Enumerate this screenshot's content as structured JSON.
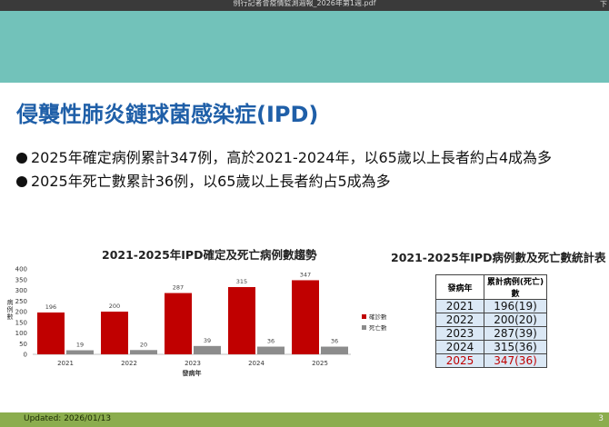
{
  "window": {
    "pdf_title": "例行記者會疫情監測週報_2026年第1週.pdf",
    "corner_text": "下"
  },
  "slide": {
    "heading": "侵襲性肺炎鏈球菌感染症(IPD)",
    "bullets": [
      "2025年確定病例累計347例，高於2021-2024年，以65歲以上長者約占4成為多",
      "2025年死亡數累計36例，以65歲以上長者約占5成為多"
    ],
    "footer": {
      "updated": "Updated: 2026/01/13",
      "page": "3"
    }
  },
  "colors": {
    "confirmed": "#c00000",
    "deaths": "#8c8c8c",
    "highlight": "#c00000"
  },
  "chart_data": {
    "type": "bar",
    "title": "2021-2025年IPD確定及死亡病例數趨勢",
    "xlabel": "發病年",
    "ylabel": "病例數",
    "categories": [
      "2021",
      "2022",
      "2023",
      "2024",
      "2025"
    ],
    "series": [
      {
        "name": "確診數",
        "values": [
          196,
          200,
          287,
          315,
          347
        ]
      },
      {
        "name": "死亡數",
        "values": [
          19,
          20,
          39,
          36,
          36
        ]
      }
    ],
    "ylim": [
      0,
      400
    ],
    "yticks": [
      0,
      50,
      100,
      150,
      200,
      250,
      300,
      350,
      400
    ],
    "grid": false,
    "legend": "right"
  },
  "table": {
    "title": "2021-2025年IPD病例數及死亡數統計表",
    "headers": [
      "發病年",
      "累計病例(死亡)數"
    ],
    "rows": [
      [
        "2021",
        "196(19)"
      ],
      [
        "2022",
        "200(20)"
      ],
      [
        "2023",
        "287(39)"
      ],
      [
        "2024",
        "315(36)"
      ],
      [
        "2025",
        "347(36)"
      ]
    ],
    "highlight_row": "2025"
  }
}
